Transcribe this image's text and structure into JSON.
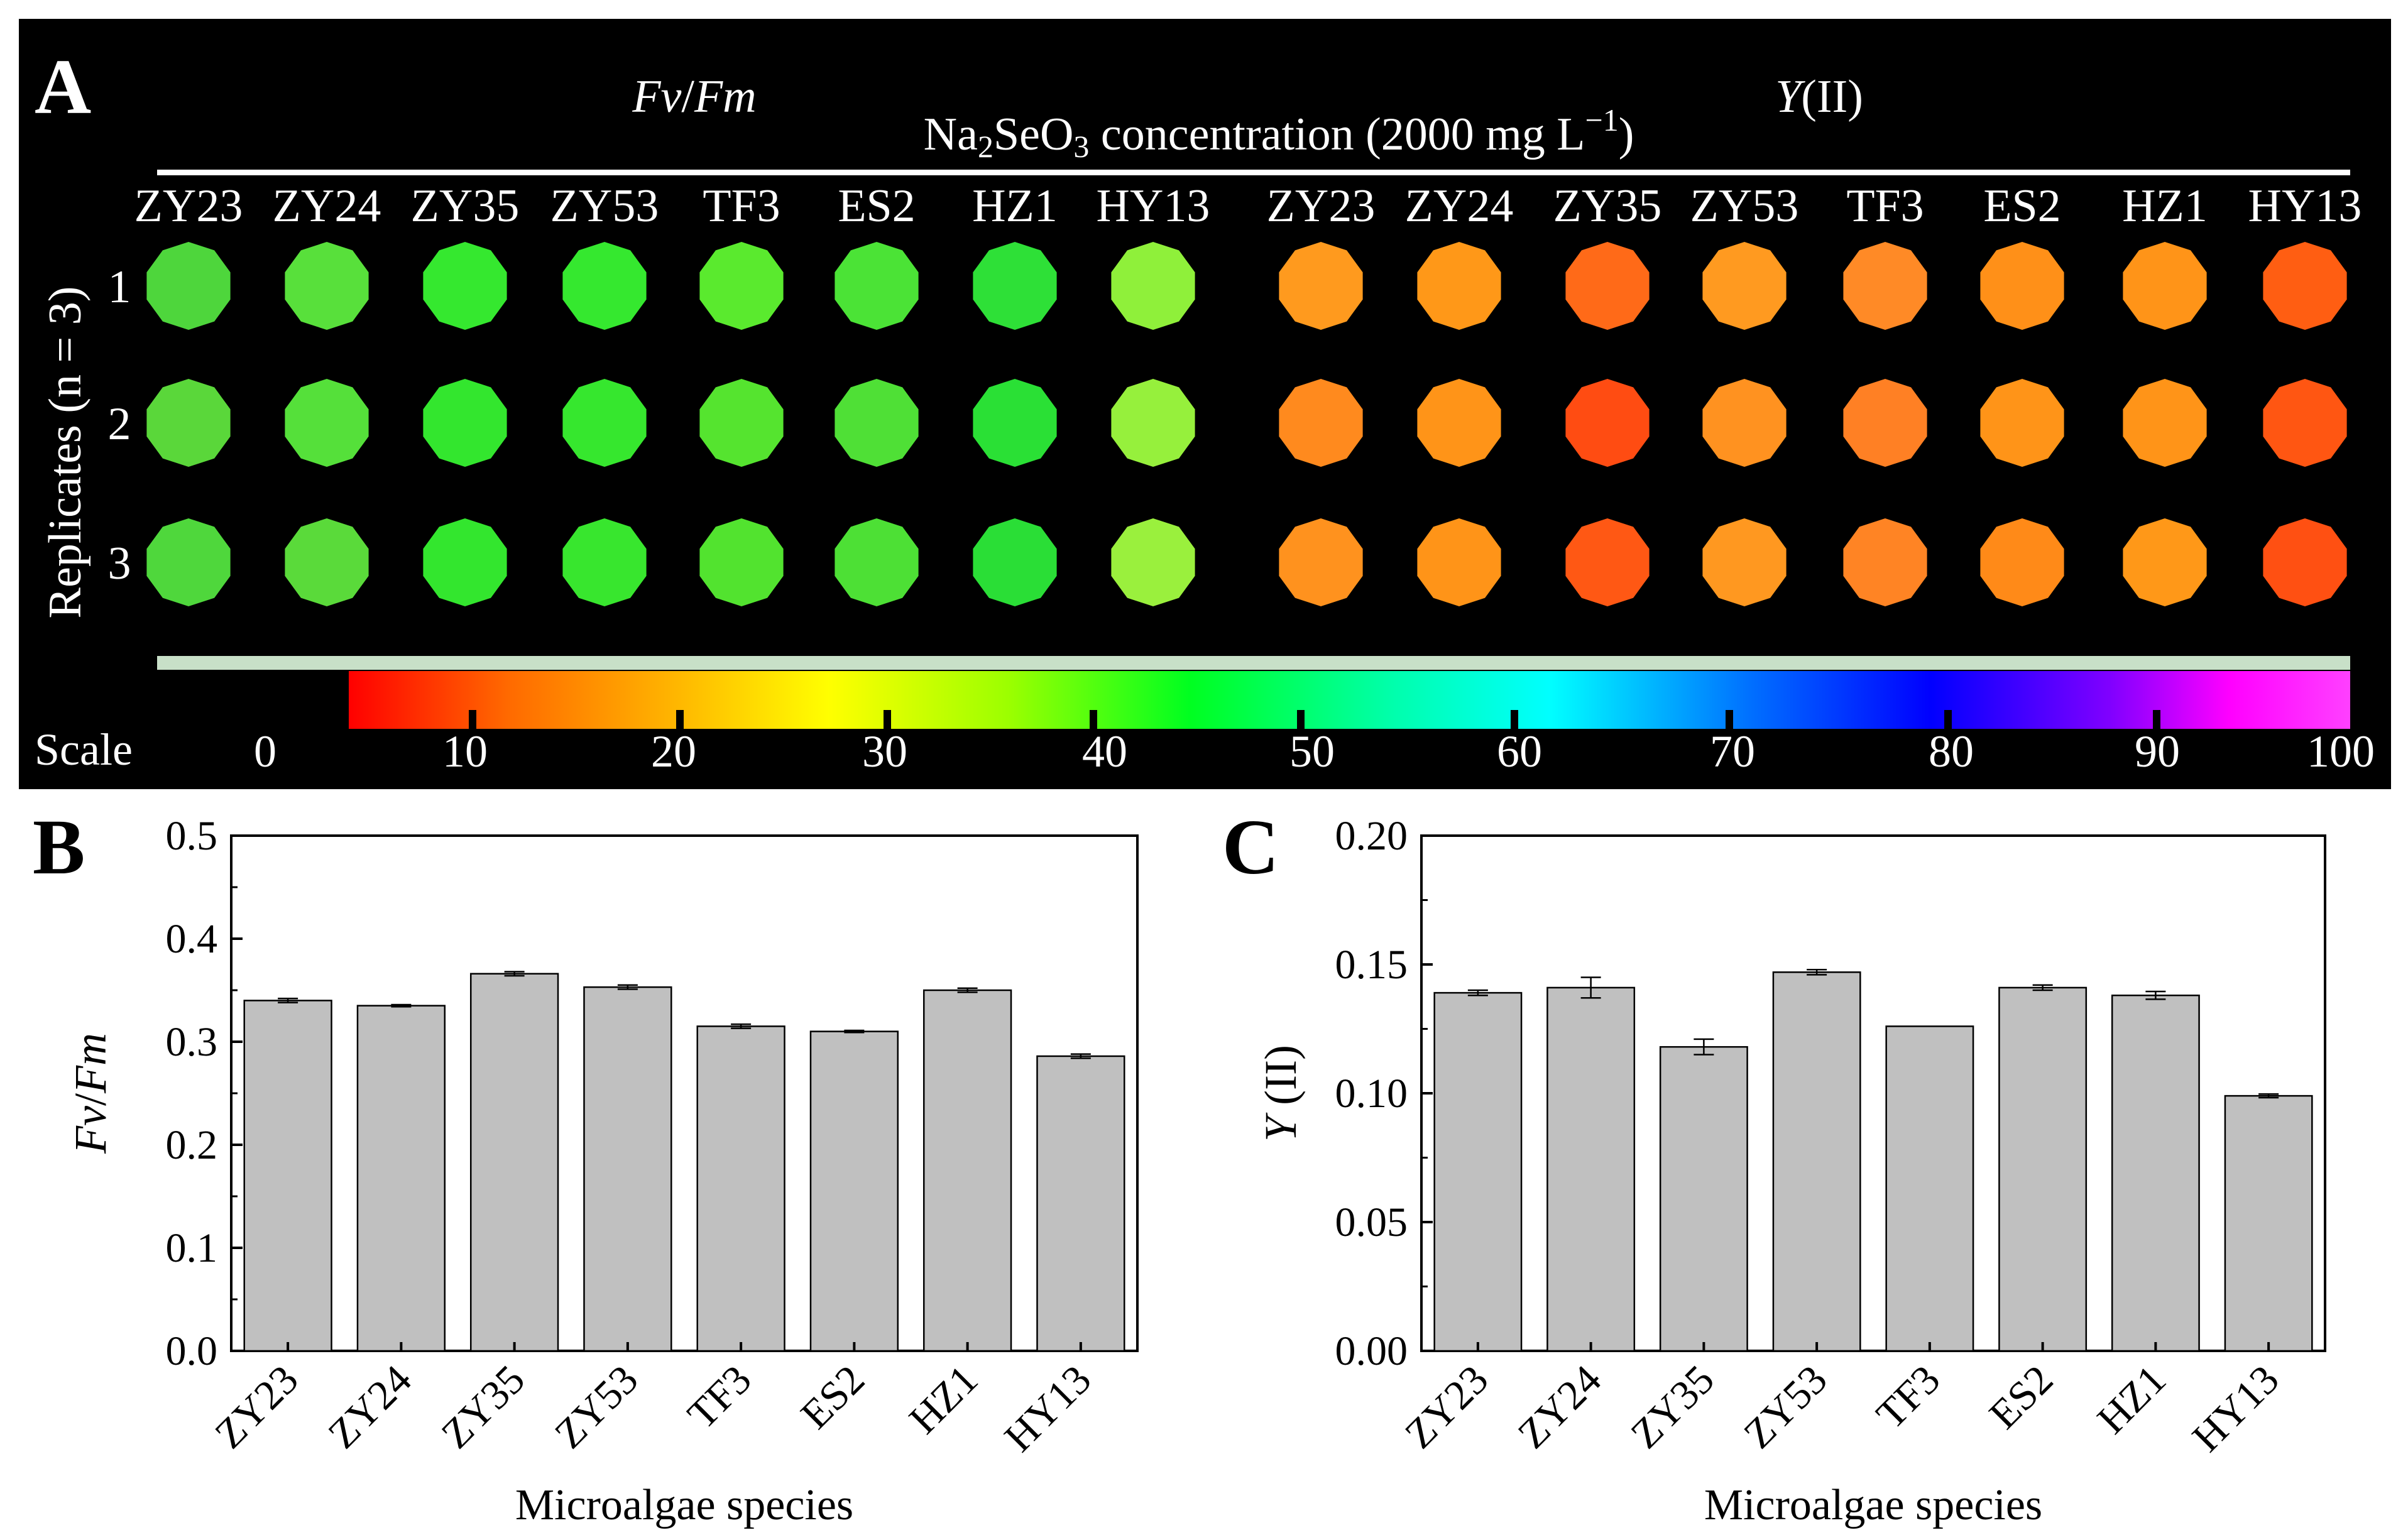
{
  "panelA": {
    "label": "A",
    "group_fvfm_label_italic": "Fv",
    "group_fvfm_label_sep": "/",
    "group_fvfm_label_italic2": "Fm",
    "group_y_label_italic": "Y",
    "group_y_label_rest": "(II)",
    "conc_prefix": "Na",
    "conc_sub1": "2",
    "conc_mid": "SeO",
    "conc_sub2": "3",
    "conc_suffix": " concentration (2000 mg L",
    "conc_sup": "−1",
    "conc_close": ")",
    "replicates_label": "Replicates (n = 3)",
    "replicate_numbers": [
      "1",
      "2",
      "3"
    ],
    "species_fvfm": [
      "ZY23",
      "ZY24",
      "ZY35",
      "ZY53",
      "TF3",
      "ES2",
      "HZ1",
      "HY13"
    ],
    "species_y": [
      "ZY23",
      "ZY24",
      "ZY35",
      "ZY53",
      "TF3",
      "ES2",
      "HZ1",
      "HY13"
    ],
    "scale_label": "Scale",
    "scale_ticks": [
      "0",
      "10",
      "20",
      "30",
      "40",
      "50",
      "60",
      "70",
      "80",
      "90",
      "100"
    ],
    "colors": {
      "fvfm": [
        [
          "#4ed63c",
          "#58e03b",
          "#35e82f",
          "#35e82f",
          "#5aea2e",
          "#4be336",
          "#2ee037",
          "#8ff03a"
        ],
        [
          "#5ad73a",
          "#55e03a",
          "#33e62e",
          "#36e72e",
          "#55e42f",
          "#4fe036",
          "#2ae035",
          "#96f03c"
        ],
        [
          "#4fd73c",
          "#5ada3a",
          "#33e62e",
          "#38e62e",
          "#52e32f",
          "#4de035",
          "#2ade36",
          "#9af03d"
        ]
      ],
      "y": [
        [
          "#ff9a1e",
          "#ff9818",
          "#ff6a18",
          "#ff9a20",
          "#ff8a26",
          "#ff9018",
          "#ff9418",
          "#ff5e12"
        ],
        [
          "#ff8a1e",
          "#ff9418",
          "#ff4c12",
          "#ff9220",
          "#ff8024",
          "#ff9418",
          "#ff9418",
          "#ff5612"
        ],
        [
          "#ff921e",
          "#ff9418",
          "#ff5814",
          "#ff9820",
          "#ff8424",
          "#ff8a18",
          "#ff9818",
          "#ff5012"
        ]
      ]
    }
  },
  "chart_data": [
    {
      "type": "bar",
      "panel": "B",
      "categories": [
        "ZY23",
        "ZY24",
        "ZY35",
        "ZY53",
        "TF3",
        "ES2",
        "HZ1",
        "HY13"
      ],
      "values": [
        0.34,
        0.335,
        0.366,
        0.353,
        0.315,
        0.31,
        0.35,
        0.286
      ],
      "errors": [
        0.002,
        0.001,
        0.002,
        0.002,
        0.002,
        0.001,
        0.002,
        0.002
      ],
      "ylim": [
        0,
        0.5
      ],
      "yticks": [
        "0.0",
        "0.1",
        "0.2",
        "0.3",
        "0.4",
        "0.5"
      ],
      "xlabel": "Microalgae species",
      "ylabel_italic1": "Fv",
      "ylabel_sep": "/",
      "ylabel_italic2": "Fm",
      "bar_color": "#c0c0c0"
    },
    {
      "type": "bar",
      "panel": "C",
      "categories": [
        "ZY23",
        "ZY24",
        "ZY35",
        "ZY53",
        "TF3",
        "ES2",
        "HZ1",
        "HY13"
      ],
      "values": [
        0.139,
        0.141,
        0.118,
        0.147,
        0.126,
        0.141,
        0.138,
        0.099
      ],
      "errors": [
        0.001,
        0.004,
        0.003,
        0.001,
        0.0,
        0.001,
        0.0015,
        0.0007
      ],
      "ylim": [
        0,
        0.2
      ],
      "yticks": [
        "0.00",
        "0.05",
        "0.10",
        "0.15",
        "0.20"
      ],
      "xlabel": "Microalgae species",
      "ylabel_italic1": "Y",
      "ylabel_rest": " (II)",
      "bar_color": "#c0c0c0"
    }
  ]
}
